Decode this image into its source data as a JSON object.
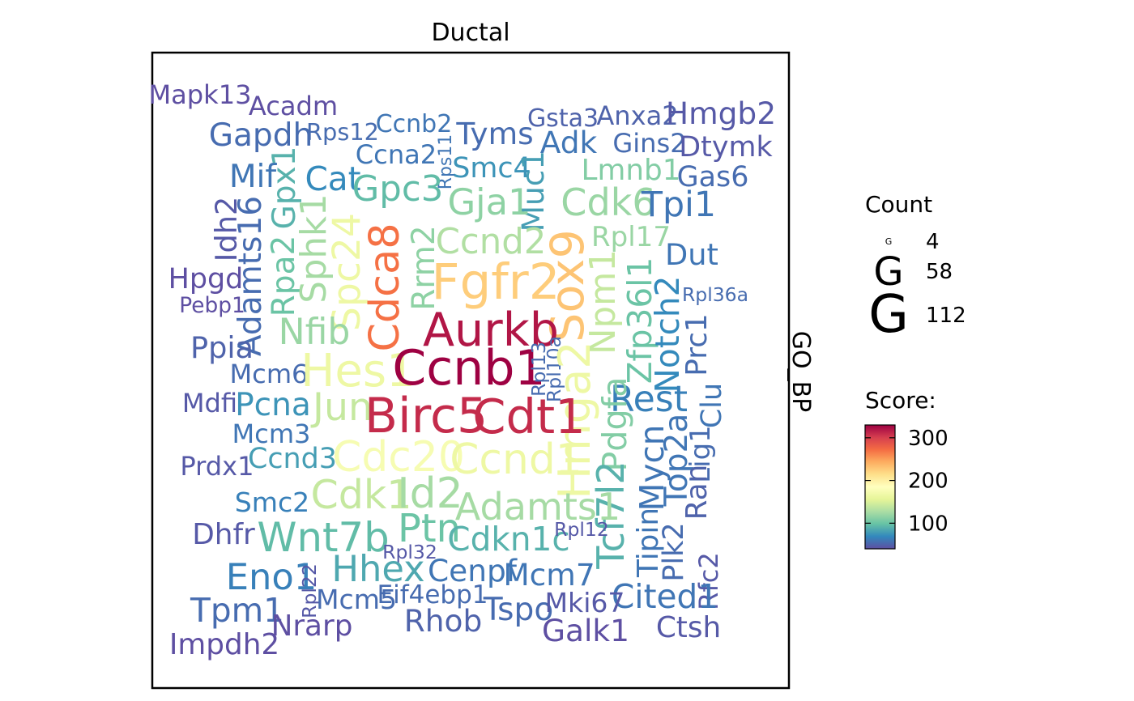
{
  "chart_data": {
    "type": "wordcloud",
    "title": "Ductal",
    "facet_label": "GO_BP",
    "legend": {
      "count": {
        "title": "Count",
        "glyph": "G",
        "breaks": [
          "4",
          "58",
          "112"
        ]
      },
      "score": {
        "title": "Score:",
        "ticks": [
          "100",
          "200",
          "300"
        ],
        "range": [
          40,
          330
        ]
      }
    },
    "palette": [
      "#5e4fa2",
      "#3288bd",
      "#66c2a5",
      "#abdda4",
      "#e6f598",
      "#ffffbf",
      "#fee08b",
      "#fdae61",
      "#f46d43",
      "#d53e4f",
      "#9e0142"
    ],
    "words": [
      {
        "label": "Mapk13",
        "score": 40,
        "count": 12
      },
      {
        "label": "Acadm",
        "score": 40,
        "count": 12
      },
      {
        "label": "Ccnb2",
        "score": 60,
        "count": 10
      },
      {
        "label": "Gsta3",
        "score": 50,
        "count": 10
      },
      {
        "label": "Anxa2",
        "score": 50,
        "count": 12
      },
      {
        "label": "Hmgb2",
        "score": 45,
        "count": 18
      },
      {
        "label": "Rps12",
        "score": 55,
        "count": 9
      },
      {
        "label": "Gapdh",
        "score": 55,
        "count": 20
      },
      {
        "label": "Tyms",
        "score": 55,
        "count": 18
      },
      {
        "label": "Adk",
        "score": 60,
        "count": 18
      },
      {
        "label": "Gins2",
        "score": 55,
        "count": 12
      },
      {
        "label": "Dtymk",
        "score": 45,
        "count": 15
      },
      {
        "label": "Ccna2",
        "score": 60,
        "count": 12
      },
      {
        "label": "Rps11",
        "score": 60,
        "count": 4
      },
      {
        "label": "Smc4",
        "score": 75,
        "count": 15
      },
      {
        "label": "Muc1",
        "score": 80,
        "count": 18
      },
      {
        "label": "Lmnb1",
        "score": 110,
        "count": 16
      },
      {
        "label": "Gas6",
        "score": 55,
        "count": 15
      },
      {
        "label": "Mif",
        "score": 60,
        "count": 20
      },
      {
        "label": "Gpx1",
        "score": 90,
        "count": 20
      },
      {
        "label": "Cat",
        "score": 70,
        "count": 22
      },
      {
        "label": "Gpc3",
        "score": 95,
        "count": 26
      },
      {
        "label": "Gja1",
        "score": 115,
        "count": 28
      },
      {
        "label": "Cdk6",
        "score": 120,
        "count": 30
      },
      {
        "label": "Tpi1",
        "score": 60,
        "count": 25
      },
      {
        "label": "Idh2",
        "score": 45,
        "count": 17
      },
      {
        "label": "Adamts16",
        "score": 55,
        "count": 20
      },
      {
        "label": "Rpa2",
        "score": 100,
        "count": 20
      },
      {
        "label": "Sphk1",
        "score": 125,
        "count": 26
      },
      {
        "label": "Spc24",
        "score": 165,
        "count": 32
      },
      {
        "label": "Cdca8",
        "score": 270,
        "count": 38
      },
      {
        "label": "Rrm2",
        "score": 115,
        "count": 20
      },
      {
        "label": "Ccnd2",
        "score": 130,
        "count": 26
      },
      {
        "label": "Sox9",
        "score": 230,
        "count": 50
      },
      {
        "label": "Rpl17",
        "score": 120,
        "count": 14
      },
      {
        "label": "Dut",
        "score": 60,
        "count": 17
      },
      {
        "label": "Hpgd",
        "score": 40,
        "count": 15
      },
      {
        "label": "Fgfr2",
        "score": 225,
        "count": 58
      },
      {
        "label": "Npm1",
        "score": 140,
        "count": 26
      },
      {
        "label": "Zfp36l1",
        "score": 100,
        "count": 22
      },
      {
        "label": "Notch2",
        "score": 70,
        "count": 22
      },
      {
        "label": "Rpl36a",
        "score": 55,
        "count": 5
      },
      {
        "label": "Pebp1",
        "score": 40,
        "count": 7
      },
      {
        "label": "Aurkb",
        "score": 320,
        "count": 50
      },
      {
        "label": "Nfib",
        "score": 120,
        "count": 27
      },
      {
        "label": "Ppia",
        "score": 50,
        "count": 17
      },
      {
        "label": "Prc1",
        "score": 55,
        "count": 16
      },
      {
        "label": "Mcm6",
        "score": 55,
        "count": 12
      },
      {
        "label": "Hes1",
        "score": 165,
        "count": 48
      },
      {
        "label": "Ccnb1",
        "score": 330,
        "count": 56
      },
      {
        "label": "Rpl13",
        "score": 55,
        "count": 5
      },
      {
        "label": "Rpl10a",
        "score": 55,
        "count": 5
      },
      {
        "label": "Hmga2",
        "score": 165,
        "count": 44
      },
      {
        "label": "Rest",
        "score": 65,
        "count": 27
      },
      {
        "label": "Clu",
        "score": 60,
        "count": 15
      },
      {
        "label": "Mdfi",
        "score": 45,
        "count": 12
      },
      {
        "label": "Pcna",
        "score": 75,
        "count": 20
      },
      {
        "label": "Jun",
        "score": 140,
        "count": 32
      },
      {
        "label": "Birc5",
        "score": 310,
        "count": 56
      },
      {
        "label": "Cdt1",
        "score": 310,
        "count": 54
      },
      {
        "label": "Pdgfa",
        "score": 110,
        "count": 23
      },
      {
        "label": "Mcm3",
        "score": 60,
        "count": 12
      },
      {
        "label": "Mycn",
        "score": 60,
        "count": 22
      },
      {
        "label": "Top2a",
        "score": 60,
        "count": 20
      },
      {
        "label": "Lig1",
        "score": 55,
        "count": 14
      },
      {
        "label": "Prdx1",
        "score": 45,
        "count": 12
      },
      {
        "label": "Ccnd3",
        "score": 80,
        "count": 15
      },
      {
        "label": "Cdc20",
        "score": 175,
        "count": 40
      },
      {
        "label": "Ccnd1",
        "score": 165,
        "count": 40
      },
      {
        "label": "Tcf7l2",
        "score": 90,
        "count": 30
      },
      {
        "label": "Smc2",
        "score": 65,
        "count": 13
      },
      {
        "label": "Cdk1",
        "score": 140,
        "count": 35
      },
      {
        "label": "Id2",
        "score": 125,
        "count": 40
      },
      {
        "label": "Adamts1",
        "score": 125,
        "count": 30
      },
      {
        "label": "Ran",
        "score": 50,
        "count": 16
      },
      {
        "label": "Dhfr",
        "score": 45,
        "count": 16
      },
      {
        "label": "Wnt7b",
        "score": 95,
        "count": 36
      },
      {
        "label": "Ptn",
        "score": 100,
        "count": 33
      },
      {
        "label": "Cdkn1c",
        "score": 90,
        "count": 22
      },
      {
        "label": "Rpl12",
        "score": 45,
        "count": 5
      },
      {
        "label": "Tipin",
        "score": 60,
        "count": 16
      },
      {
        "label": "Plk2",
        "score": 55,
        "count": 15
      },
      {
        "label": "Rpl32",
        "score": 45,
        "count": 5
      },
      {
        "label": "Hhex",
        "score": 85,
        "count": 28
      },
      {
        "label": "Eno1",
        "score": 65,
        "count": 28
      },
      {
        "label": "Cenpf",
        "score": 60,
        "count": 18
      },
      {
        "label": "Mcm7",
        "score": 60,
        "count": 18
      },
      {
        "label": "Rfc2",
        "score": 45,
        "count": 12
      },
      {
        "label": "Rpl22",
        "score": 45,
        "count": 5
      },
      {
        "label": "Mcm5",
        "score": 55,
        "count": 13
      },
      {
        "label": "Eif4ebp1",
        "score": 55,
        "count": 11
      },
      {
        "label": "Cited1",
        "score": 60,
        "count": 22
      },
      {
        "label": "Tpm1",
        "score": 55,
        "count": 22
      },
      {
        "label": "Tspo",
        "score": 55,
        "count": 20
      },
      {
        "label": "Mki67",
        "score": 45,
        "count": 13
      },
      {
        "label": "Rhob",
        "score": 50,
        "count": 18
      },
      {
        "label": "Nrarp",
        "score": 40,
        "count": 16
      },
      {
        "label": "Galk1",
        "score": 40,
        "count": 18
      },
      {
        "label": "Ctsh",
        "score": 45,
        "count": 16
      },
      {
        "label": "Impdh2",
        "score": 40,
        "count": 16
      }
    ]
  }
}
